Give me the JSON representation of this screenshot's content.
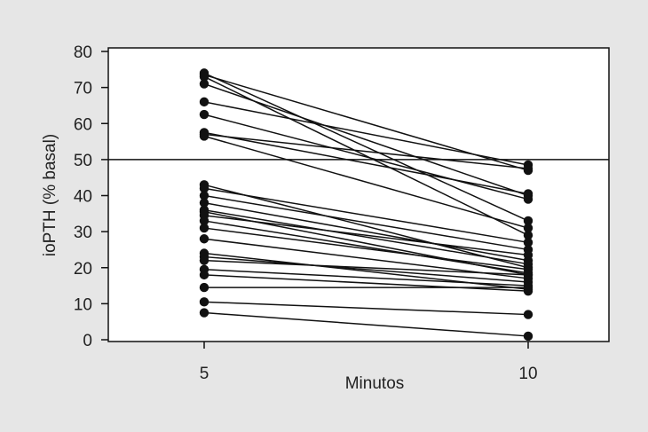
{
  "chart_data": {
    "type": "line",
    "title": "",
    "xlabel": "Minutos",
    "ylabel": "ioPTH (% basal)",
    "x": [
      5,
      10
    ],
    "x_ticks": [
      "5",
      "10"
    ],
    "ylim": [
      0,
      80
    ],
    "y_ticks": [
      "0",
      "10",
      "20",
      "30",
      "40",
      "50",
      "60",
      "70",
      "80"
    ],
    "grid": false,
    "legend": "none",
    "reference_line": {
      "y": 50
    },
    "colors": {
      "background": "#e6e6e6",
      "plot_area": "#ffffff",
      "ink": "#111111"
    },
    "series": [
      {
        "values": [
          74,
          33
        ]
      },
      {
        "values": [
          73.5,
          47
        ]
      },
      {
        "values": [
          73,
          29
        ]
      },
      {
        "values": [
          71,
          40
        ]
      },
      {
        "values": [
          66,
          48.5
        ]
      },
      {
        "values": [
          62.5,
          39
        ]
      },
      {
        "values": [
          57.5,
          40.5
        ]
      },
      {
        "values": [
          57,
          47.5
        ]
      },
      {
        "values": [
          56.5,
          31
        ]
      },
      {
        "values": [
          43,
          20
        ]
      },
      {
        "values": [
          42,
          27
        ]
      },
      {
        "values": [
          40,
          25
        ]
      },
      {
        "values": [
          38,
          22
        ]
      },
      {
        "values": [
          36,
          21
        ]
      },
      {
        "values": [
          35.5,
          18
        ]
      },
      {
        "values": [
          34.5,
          23.5
        ]
      },
      {
        "values": [
          33,
          18.5
        ]
      },
      {
        "values": [
          31,
          19.5
        ]
      },
      {
        "values": [
          28,
          17
        ]
      },
      {
        "values": [
          24,
          14
        ]
      },
      {
        "values": [
          23,
          16
        ]
      },
      {
        "values": [
          22,
          18
        ]
      },
      {
        "values": [
          19.5,
          15
        ]
      },
      {
        "values": [
          18,
          13.5
        ]
      },
      {
        "values": [
          14.5,
          14.5
        ]
      },
      {
        "values": [
          10.5,
          7
        ]
      },
      {
        "values": [
          7.5,
          1
        ]
      }
    ]
  }
}
